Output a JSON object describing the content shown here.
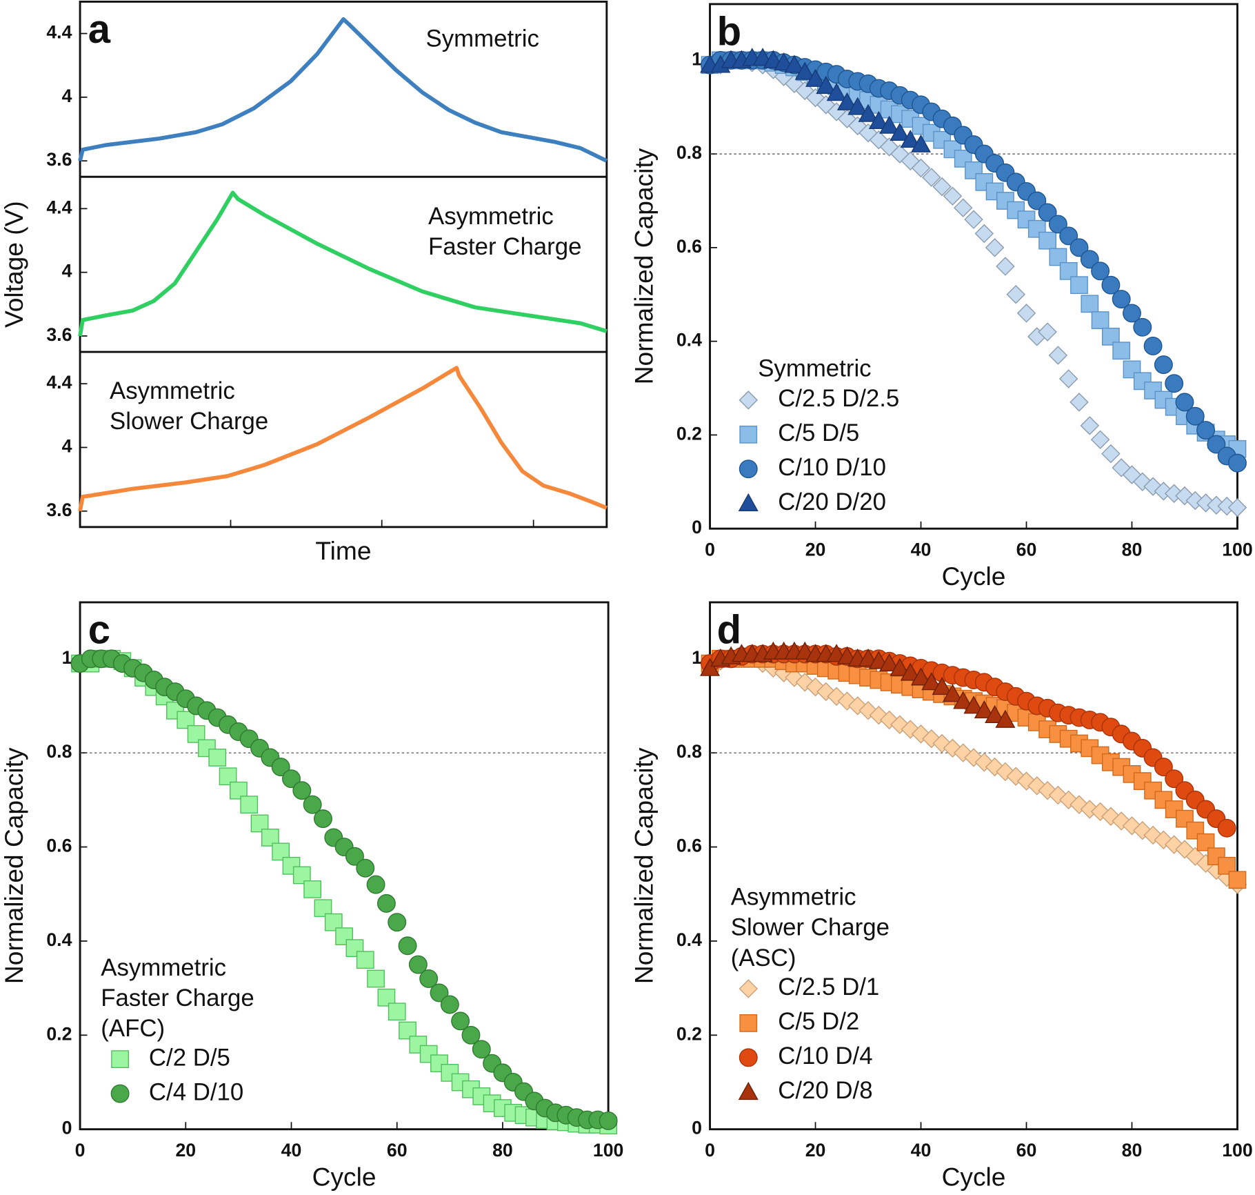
{
  "chart_data": [
    {
      "type": "line",
      "panel_label": "a",
      "xlabel": "Time",
      "ylabel": "Voltage (V)",
      "xlim": [
        0,
        100
      ],
      "xtick_marks": [
        28.6,
        57.3,
        86.1
      ],
      "subplots": [
        {
          "annotation": [
            "Symmetric"
          ],
          "ylim": [
            3.5,
            4.6
          ],
          "yticks": [
            3.6,
            4,
            4.4
          ],
          "color": "#3d7fbf",
          "x": [
            0,
            0.5,
            5,
            15,
            22,
            27,
            33,
            40,
            45,
            50,
            51,
            55,
            60,
            65,
            70,
            75,
            80,
            90,
            95,
            100
          ],
          "values": [
            3.6,
            3.67,
            3.7,
            3.74,
            3.78,
            3.83,
            3.93,
            4.1,
            4.27,
            4.49,
            4.46,
            4.33,
            4.17,
            4.03,
            3.92,
            3.84,
            3.78,
            3.72,
            3.68,
            3.6
          ]
        },
        {
          "annotation": [
            "Asymmetric",
            "Faster Charge"
          ],
          "ylim": [
            3.5,
            4.6
          ],
          "yticks": [
            3.6,
            4,
            4.4
          ],
          "color": "#2fcf62",
          "x": [
            0,
            0.5,
            5,
            10,
            14,
            18,
            22,
            26,
            29,
            30,
            35,
            45,
            55,
            65,
            75,
            85,
            95,
            100
          ],
          "values": [
            3.6,
            3.7,
            3.73,
            3.76,
            3.82,
            3.93,
            4.13,
            4.33,
            4.5,
            4.46,
            4.36,
            4.18,
            4.02,
            3.88,
            3.78,
            3.73,
            3.68,
            3.63
          ]
        },
        {
          "annotation": [
            "Asymmetric",
            "Slower Charge"
          ],
          "ylim": [
            3.5,
            4.6
          ],
          "yticks": [
            3.6,
            4,
            4.4
          ],
          "color": "#f5883a",
          "x": [
            0,
            0.5,
            10,
            20,
            28,
            35,
            45,
            55,
            65,
            71.5,
            72,
            76,
            80,
            84,
            88,
            93,
            97,
            100
          ],
          "values": [
            3.6,
            3.69,
            3.74,
            3.78,
            3.82,
            3.89,
            4.02,
            4.19,
            4.37,
            4.5,
            4.45,
            4.25,
            4.03,
            3.85,
            3.76,
            3.71,
            3.66,
            3.62
          ]
        }
      ]
    },
    {
      "type": "scatter",
      "panel_label": "b",
      "xlabel": "Cycle",
      "ylabel": "Normalized Capacity",
      "xlim": [
        0,
        100
      ],
      "ylim": [
        0,
        1.12
      ],
      "xticks": [
        0,
        20,
        40,
        60,
        80,
        100
      ],
      "yticks": [
        0,
        0.2,
        0.4,
        0.6,
        0.8,
        1
      ],
      "hline": 0.8,
      "legend_title": [
        "Symmetric"
      ],
      "x": [
        0,
        2,
        4,
        6,
        8,
        10,
        12,
        14,
        16,
        18,
        20,
        22,
        24,
        26,
        28,
        30,
        32,
        34,
        36,
        38,
        40,
        42,
        44,
        46,
        48,
        50,
        52,
        54,
        56,
        58,
        60,
        62,
        64,
        66,
        68,
        70,
        72,
        74,
        76,
        78,
        80,
        82,
        84,
        86,
        88,
        90,
        92,
        94,
        96,
        98,
        100
      ],
      "series": [
        {
          "name": "C/2.5 D/2.5",
          "marker": "diamond",
          "color": "#c6dbef",
          "edgecolor": "#8a9bb0",
          "values": [
            0.99,
            0.99,
            1.0,
            1.0,
            0.995,
            0.99,
            0.98,
            0.965,
            0.95,
            0.935,
            0.92,
            0.905,
            0.89,
            0.875,
            0.86,
            0.845,
            0.83,
            0.815,
            0.8,
            0.785,
            0.77,
            0.75,
            0.73,
            0.71,
            0.685,
            0.66,
            0.63,
            0.6,
            0.56,
            0.5,
            0.46,
            0.41,
            0.42,
            0.37,
            0.32,
            0.27,
            0.22,
            0.19,
            0.16,
            0.13,
            0.115,
            0.1,
            0.09,
            0.08,
            0.075,
            0.07,
            0.06,
            0.055,
            0.05,
            0.048,
            0.045
          ]
        },
        {
          "name": "C/5 D/5",
          "marker": "square",
          "color": "#8cbde8",
          "edgecolor": "#5a92c8",
          "values": [
            0.99,
            1.0,
            1.0,
            1.0,
            1.0,
            1.0,
            0.995,
            0.99,
            0.985,
            0.975,
            0.965,
            0.955,
            0.945,
            0.935,
            0.925,
            0.915,
            0.905,
            0.895,
            0.885,
            0.875,
            0.86,
            0.845,
            0.83,
            0.81,
            0.79,
            0.765,
            0.74,
            0.72,
            0.7,
            0.68,
            0.66,
            0.64,
            0.615,
            0.58,
            0.55,
            0.52,
            0.48,
            0.445,
            0.41,
            0.38,
            0.34,
            0.315,
            0.295,
            0.275,
            0.26,
            0.24,
            0.22,
            0.205,
            0.19,
            0.18,
            0.17
          ]
        },
        {
          "name": "C/10 D/10",
          "marker": "circle",
          "color": "#3a7bbf",
          "edgecolor": "#1f5590",
          "values": [
            0.99,
            1.0,
            1.0,
            1.0,
            1.0,
            1.0,
            1.0,
            0.995,
            0.99,
            0.985,
            0.98,
            0.975,
            0.97,
            0.96,
            0.955,
            0.95,
            0.94,
            0.935,
            0.925,
            0.915,
            0.905,
            0.89,
            0.875,
            0.86,
            0.84,
            0.82,
            0.8,
            0.78,
            0.76,
            0.74,
            0.72,
            0.7,
            0.675,
            0.65,
            0.625,
            0.6,
            0.575,
            0.55,
            0.52,
            0.49,
            0.46,
            0.43,
            0.39,
            0.35,
            0.31,
            0.27,
            0.24,
            0.21,
            0.18,
            0.155,
            0.14
          ]
        },
        {
          "name": "C/20 D/20",
          "marker": "triangle",
          "color": "#1f4e9a",
          "edgecolor": "#173a75",
          "values": [
            0.99,
            0.99,
            1.0,
            1.0,
            1.005,
            1.005,
            1.0,
            0.995,
            0.99,
            0.975,
            0.96,
            0.945,
            0.93,
            0.91,
            0.9,
            0.885,
            0.87,
            0.86,
            0.845,
            0.83,
            0.82,
            null,
            null,
            null,
            null,
            null,
            null,
            null,
            null,
            null,
            null,
            null,
            null,
            null,
            null,
            null,
            null,
            null,
            null,
            null,
            null,
            null,
            null,
            null,
            null,
            null,
            null,
            null,
            null,
            null,
            null
          ]
        }
      ]
    },
    {
      "type": "scatter",
      "panel_label": "c",
      "xlabel": "Cycle",
      "ylabel": "Normalized Capacity",
      "xlim": [
        0,
        100
      ],
      "ylim": [
        0,
        1.12
      ],
      "xticks": [
        0,
        20,
        40,
        60,
        80,
        100
      ],
      "yticks": [
        0,
        0.2,
        0.4,
        0.6,
        0.8,
        1
      ],
      "hline": 0.8,
      "legend_title": [
        "Asymmetric",
        "Faster Charge",
        "(AFC)"
      ],
      "x": [
        0,
        2,
        4,
        6,
        8,
        10,
        12,
        14,
        16,
        18,
        20,
        22,
        24,
        26,
        28,
        30,
        32,
        34,
        36,
        38,
        40,
        42,
        44,
        46,
        48,
        50,
        52,
        54,
        56,
        58,
        60,
        62,
        64,
        66,
        68,
        70,
        72,
        74,
        76,
        78,
        80,
        82,
        84,
        86,
        88,
        90,
        92,
        94,
        96,
        98,
        100
      ],
      "series": [
        {
          "name": "C/2 D/5",
          "marker": "square",
          "color": "#9cf5a0",
          "edgecolor": "#4fbf5c",
          "values": [
            0.99,
            0.99,
            1.0,
            1.0,
            0.995,
            0.98,
            0.96,
            0.94,
            0.92,
            0.89,
            0.87,
            0.84,
            0.81,
            0.79,
            0.75,
            0.72,
            0.69,
            0.65,
            0.62,
            0.59,
            0.56,
            0.54,
            0.51,
            0.47,
            0.44,
            0.41,
            0.385,
            0.36,
            0.32,
            0.28,
            0.25,
            0.21,
            0.18,
            0.16,
            0.14,
            0.12,
            0.1,
            0.085,
            0.07,
            0.055,
            0.045,
            0.035,
            0.03,
            0.025,
            0.02,
            0.017,
            0.015,
            0.012,
            0.01,
            0.01,
            0.008
          ]
        },
        {
          "name": "C/4 D/10",
          "marker": "circle",
          "color": "#4aa84a",
          "edgecolor": "#2e7a30",
          "values": [
            0.99,
            1.0,
            1.0,
            1.0,
            0.99,
            0.98,
            0.97,
            0.955,
            0.94,
            0.93,
            0.915,
            0.9,
            0.89,
            0.875,
            0.86,
            0.845,
            0.83,
            0.81,
            0.79,
            0.77,
            0.745,
            0.72,
            0.69,
            0.66,
            0.62,
            0.6,
            0.58,
            0.555,
            0.52,
            0.48,
            0.44,
            0.39,
            0.35,
            0.32,
            0.29,
            0.265,
            0.23,
            0.2,
            0.17,
            0.14,
            0.12,
            0.1,
            0.08,
            0.06,
            0.045,
            0.035,
            0.03,
            0.025,
            0.02,
            0.02,
            0.018
          ]
        }
      ]
    },
    {
      "type": "scatter",
      "panel_label": "d",
      "xlabel": "Cycle",
      "ylabel": "Normalized Capacity",
      "xlim": [
        0,
        100
      ],
      "ylim": [
        0,
        1.12
      ],
      "xticks": [
        0,
        20,
        40,
        60,
        80,
        100
      ],
      "yticks": [
        0,
        0.2,
        0.4,
        0.6,
        0.8,
        1
      ],
      "hline": 0.8,
      "legend_title": [
        "Asymmetric",
        "Slower Charge",
        "(ASC)"
      ],
      "x": [
        0,
        2,
        4,
        6,
        8,
        10,
        12,
        14,
        16,
        18,
        20,
        22,
        24,
        26,
        28,
        30,
        32,
        34,
        36,
        38,
        40,
        42,
        44,
        46,
        48,
        50,
        52,
        54,
        56,
        58,
        60,
        62,
        64,
        66,
        68,
        70,
        72,
        74,
        76,
        78,
        80,
        82,
        84,
        86,
        88,
        90,
        92,
        94,
        96,
        98,
        100
      ],
      "series": [
        {
          "name": "C/2.5 D/1",
          "marker": "diamond",
          "color": "#fdd2a5",
          "edgecolor": "#c8a07a",
          "values": [
            0.99,
            0.995,
            1.0,
            1.0,
            1.0,
            0.99,
            0.98,
            0.97,
            0.96,
            0.95,
            0.94,
            0.93,
            0.92,
            0.91,
            0.9,
            0.89,
            0.88,
            0.87,
            0.86,
            0.85,
            0.84,
            0.83,
            0.82,
            0.81,
            0.8,
            0.79,
            0.78,
            0.77,
            0.76,
            0.75,
            0.74,
            0.73,
            0.72,
            0.71,
            0.7,
            0.69,
            0.68,
            0.675,
            0.665,
            0.655,
            0.645,
            0.635,
            0.625,
            0.615,
            0.605,
            0.595,
            0.58,
            0.565,
            0.55,
            0.535,
            0.52
          ]
        },
        {
          "name": "C/5 D/2",
          "marker": "square",
          "color": "#f79040",
          "edgecolor": "#d0691e",
          "values": [
            0.99,
            1.0,
            1.0,
            1.0,
            1.0,
            1.0,
            1.0,
            0.995,
            0.99,
            0.99,
            0.985,
            0.98,
            0.975,
            0.97,
            0.965,
            0.96,
            0.955,
            0.95,
            0.945,
            0.94,
            0.935,
            0.93,
            0.925,
            0.92,
            0.915,
            0.91,
            0.905,
            0.9,
            0.895,
            0.885,
            0.875,
            0.865,
            0.85,
            0.84,
            0.83,
            0.82,
            0.81,
            0.795,
            0.78,
            0.77,
            0.755,
            0.74,
            0.72,
            0.7,
            0.68,
            0.66,
            0.635,
            0.61,
            0.58,
            0.56,
            0.53
          ]
        },
        {
          "name": "C/10 D/4",
          "marker": "circle",
          "color": "#de4a0f",
          "edgecolor": "#a8330c",
          "values": [
            0.99,
            1.0,
            1.0,
            1.005,
            1.01,
            1.01,
            1.01,
            1.01,
            1.01,
            1.01,
            1.01,
            1.01,
            1.005,
            1.005,
            1.0,
            1.0,
            1.0,
            0.995,
            0.99,
            0.985,
            0.98,
            0.975,
            0.97,
            0.965,
            0.96,
            0.955,
            0.95,
            0.94,
            0.93,
            0.92,
            0.91,
            0.9,
            0.895,
            0.885,
            0.88,
            0.875,
            0.87,
            0.865,
            0.855,
            0.84,
            0.825,
            0.81,
            0.79,
            0.77,
            0.745,
            0.72,
            0.7,
            0.68,
            0.66,
            0.64,
            null
          ]
        },
        {
          "name": "C/20 D/8",
          "marker": "triangle",
          "color": "#a8330c",
          "edgecolor": "#6e2008",
          "values": [
            0.98,
            1.0,
            1.005,
            1.01,
            1.01,
            1.01,
            1.015,
            1.015,
            1.015,
            1.015,
            1.01,
            1.01,
            1.01,
            1.005,
            1.0,
            1.0,
            0.995,
            0.99,
            0.98,
            0.97,
            0.96,
            0.95,
            0.94,
            0.925,
            0.91,
            0.9,
            0.89,
            0.88,
            0.87,
            null,
            null,
            null,
            null,
            null,
            null,
            null,
            null,
            null,
            null,
            null,
            null,
            null,
            null,
            null,
            null,
            null,
            null,
            null,
            null,
            null,
            null
          ]
        }
      ]
    }
  ]
}
